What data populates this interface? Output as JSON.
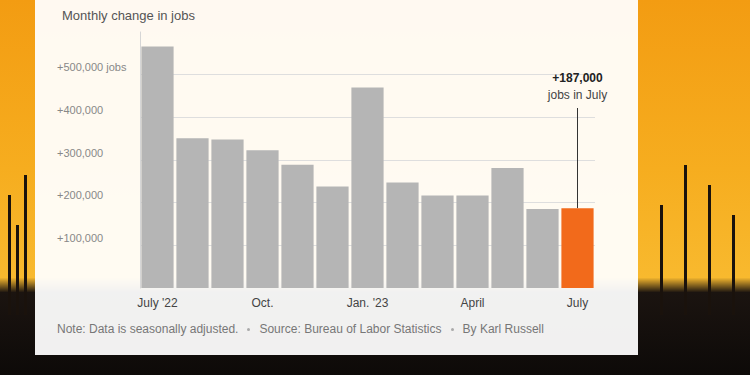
{
  "chart_data": {
    "type": "bar",
    "subtitle": "Monthly change in jobs",
    "categories": [
      "July '22",
      null,
      null,
      "Oct.",
      null,
      null,
      "Jan. '23",
      null,
      null,
      "April",
      null,
      null,
      "July"
    ],
    "values": [
      566000,
      351000,
      348000,
      323000,
      289000,
      238000,
      470000,
      247000,
      217000,
      217000,
      281000,
      185000,
      187000
    ],
    "colors": [
      "#b5b5b5",
      "#b5b5b5",
      "#b5b5b5",
      "#b5b5b5",
      "#b5b5b5",
      "#b5b5b5",
      "#b5b5b5",
      "#b5b5b5",
      "#b5b5b5",
      "#b5b5b5",
      "#b5b5b5",
      "#b5b5b5",
      "#f26a1b"
    ],
    "ylim": [
      0,
      600000
    ],
    "yticks": [
      {
        "value": 100000,
        "label": "+100,000"
      },
      {
        "value": 200000,
        "label": "+200,000"
      },
      {
        "value": 300000,
        "label": "+300,000"
      },
      {
        "value": 400000,
        "label": "+400,000"
      },
      {
        "value": 500000,
        "label": "+500,000 jobs"
      }
    ],
    "grid": true,
    "annotation": [
      "+187,000",
      "jobs in July"
    ],
    "notes": [
      "Note: Data is seasonally adjusted.",
      "Source: Bureau of Labor Statistics",
      "By Karl Russell"
    ]
  }
}
